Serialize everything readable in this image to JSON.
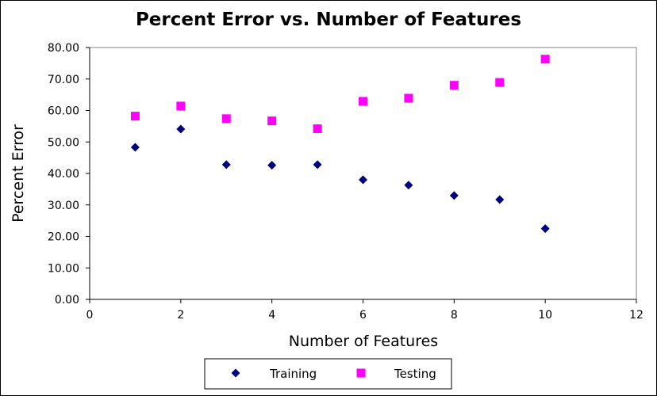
{
  "chart_data": {
    "type": "scatter",
    "title": "Percent Error vs. Number of Features",
    "xlabel": "Number of Features",
    "ylabel": "Percent Error",
    "xlim": [
      0,
      12
    ],
    "ylim": [
      0,
      80
    ],
    "x_ticks": [
      0,
      2,
      4,
      6,
      8,
      10,
      12
    ],
    "x_tick_labels": [
      "0",
      "2",
      "4",
      "6",
      "8",
      "10",
      "12"
    ],
    "y_ticks": [
      0,
      10,
      20,
      30,
      40,
      50,
      60,
      70,
      80
    ],
    "y_tick_labels": [
      "0.00",
      "10.00",
      "20.00",
      "30.00",
      "40.00",
      "50.00",
      "60.00",
      "70.00",
      "80.00"
    ],
    "grid": false,
    "legend_position": "bottom",
    "series": [
      {
        "name": "Training",
        "marker": "diamond",
        "color": "#000080",
        "x": [
          1,
          2,
          3,
          4,
          5,
          6,
          7,
          8,
          9,
          10
        ],
        "y": [
          48.3,
          54.1,
          42.8,
          42.6,
          42.8,
          38.0,
          36.3,
          33.0,
          31.7,
          22.5
        ]
      },
      {
        "name": "Testing",
        "marker": "square",
        "color": "#ff00ff",
        "x": [
          1,
          2,
          3,
          4,
          5,
          6,
          7,
          8,
          9,
          10
        ],
        "y": [
          58.2,
          61.4,
          57.4,
          56.7,
          54.2,
          62.9,
          63.9,
          68.0,
          68.9,
          76.3
        ]
      }
    ]
  }
}
